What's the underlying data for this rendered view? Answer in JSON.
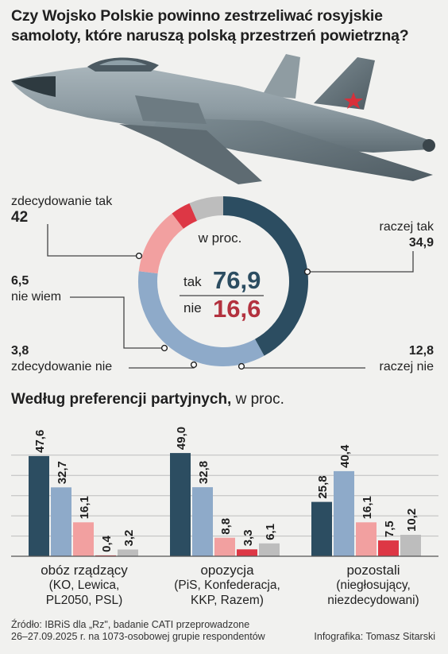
{
  "title": "Czy Wojsko Polskie powinno zestrzeliwać rosyjskie samoloty, które naruszą polską przestrzeń powietrzną?",
  "colors": {
    "dark": "#2c4d61",
    "light_blue": "#8eaac9",
    "pink": "#f2a0a0",
    "red": "#dd3745",
    "gray": "#bdbdbd"
  },
  "chart_data": [
    {
      "type": "pie",
      "unit": "w proc.",
      "slices": [
        {
          "name": "zdecydowanie tak",
          "value": 42,
          "value_label": "42",
          "color": "#2c4d61"
        },
        {
          "name": "raczej tak",
          "value": 34.9,
          "value_label": "34,9",
          "color": "#8eaac9"
        },
        {
          "name": "raczej nie",
          "value": 12.8,
          "value_label": "12,8",
          "color": "#f2a0a0"
        },
        {
          "name": "zdecydowanie nie",
          "value": 3.8,
          "value_label": "3,8",
          "color": "#dd3745"
        },
        {
          "name": "nie wiem",
          "value": 6.5,
          "value_label": "6,5",
          "color": "#bdbdbd"
        }
      ],
      "summary": [
        {
          "key": "tak",
          "value": 76.9,
          "value_label": "76,9",
          "color": "#2c4d61"
        },
        {
          "key": "nie",
          "value": 16.6,
          "value_label": "16,6",
          "color": "#b3323f"
        }
      ]
    },
    {
      "type": "bar",
      "title": "Według preferencji partyjnych,",
      "unit": "w proc.",
      "ylim": [
        0,
        55
      ],
      "groups": [
        {
          "title": "obóz rządzący",
          "subtitle": "(KO, Lewica, PL2050, PSL)",
          "values": [
            47.6,
            32.7,
            16.1,
            0.4,
            3.2
          ],
          "labels": [
            "47,6",
            "32,7",
            "16,1",
            "0,4",
            "3,2"
          ]
        },
        {
          "title": "opozycja",
          "subtitle": "(PiS, Konfederacja, KKP, Razem)",
          "values": [
            49.0,
            32.8,
            8.8,
            3.3,
            6.1
          ],
          "labels": [
            "49,0",
            "32,8",
            "8,8",
            "3,3",
            "6,1"
          ]
        },
        {
          "title": "pozostali",
          "subtitle": "(niegłosujący, niezdecydowani)",
          "values": [
            25.8,
            40.4,
            16.1,
            7.5,
            10.2
          ],
          "labels": [
            "25,8",
            "40,4",
            "16,1",
            "7,5",
            "10,2"
          ]
        }
      ],
      "series_colors": [
        "#2c4d61",
        "#8eaac9",
        "#f2a0a0",
        "#dd3745",
        "#bdbdbd"
      ]
    }
  ],
  "source": {
    "line1": "Źródło: IBRiS dla „Rz\", badanie CATI przeprowadzone",
    "line2": "26–27.09.2025 r. na 1073-osobowej grupie respondentów"
  },
  "credit": "Infografika: Tomasz Sitarski"
}
